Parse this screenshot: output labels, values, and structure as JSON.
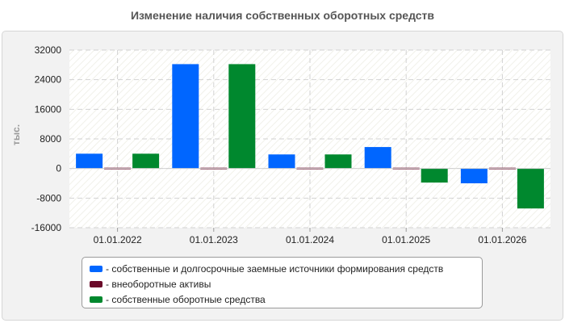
{
  "chart_data": {
    "type": "bar",
    "title": "Изменение наличия собственных оборотных средств",
    "ylabel": "тыс.",
    "xlabel": "",
    "categories": [
      "01.01.2022",
      "01.01.2023",
      "01.01.2024",
      "01.01.2025",
      "01.01.2026"
    ],
    "yticks": [
      "32000",
      "24000",
      "16000",
      "8000",
      "0",
      "-8000",
      "-16000"
    ],
    "ylim": [
      -16000,
      32000
    ],
    "grid": true,
    "legend_position": "bottom",
    "series": [
      {
        "name": "- собственные и долгосрочные заемные источники формирования средств",
        "color": "#0066ff",
        "values": [
          4000,
          28200,
          3800,
          5800,
          -4000
        ]
      },
      {
        "name": "- внеоборотные активы",
        "color": "#6b0a2a",
        "values": [
          300,
          300,
          300,
          300,
          300
        ]
      },
      {
        "name": "- собственные оборотные средства",
        "color": "#00882e",
        "values": [
          4000,
          28200,
          3800,
          -3800,
          -10800
        ]
      }
    ]
  }
}
